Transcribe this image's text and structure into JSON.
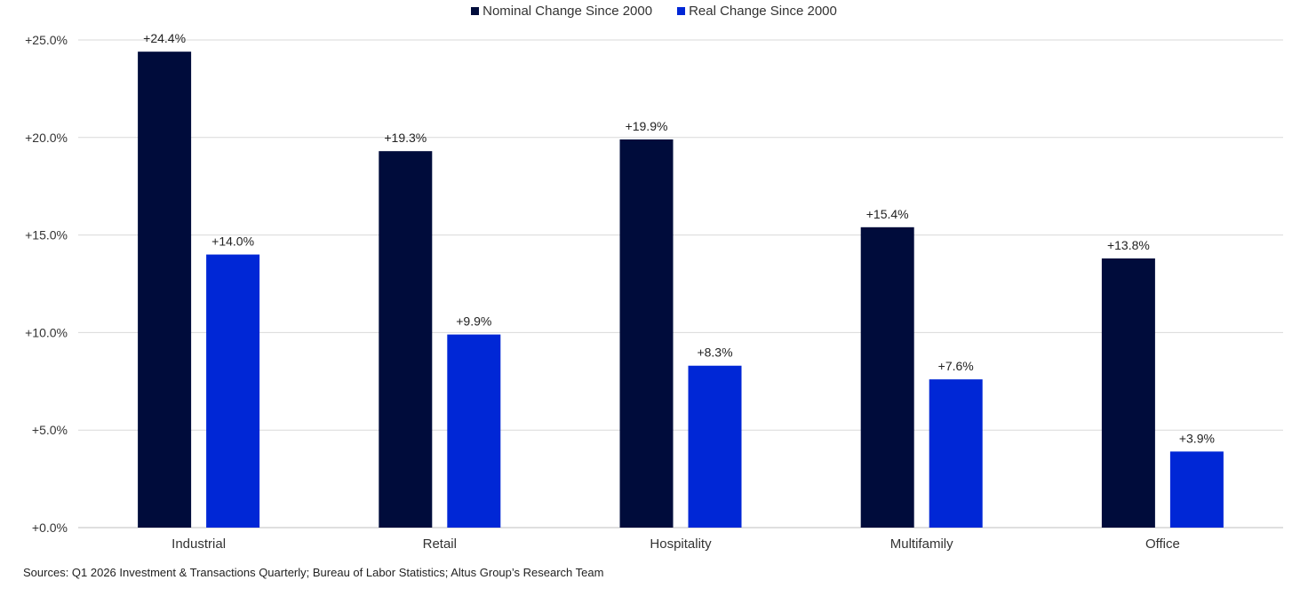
{
  "chart_data": {
    "type": "bar",
    "categories": [
      "Industrial",
      "Retail",
      "Hospitality",
      "Multifamily",
      "Office"
    ],
    "series": [
      {
        "name": "Nominal Change Since 2000",
        "color": "#000c3b",
        "values": [
          24.4,
          19.3,
          19.9,
          15.4,
          13.8
        ],
        "labels": [
          "+24.4%",
          "+19.3%",
          "+19.9%",
          "+15.4%",
          "+13.8%"
        ]
      },
      {
        "name": "Real Change Since 2000",
        "color": "#0027d6",
        "values": [
          14.0,
          9.9,
          8.3,
          7.6,
          3.9
        ],
        "labels": [
          "+14.0%",
          "+9.9%",
          "+8.3%",
          "+7.6%",
          "+3.9%"
        ]
      }
    ],
    "yticks": [
      0,
      5,
      10,
      15,
      20,
      25
    ],
    "ytick_labels": [
      "+0.0%",
      "+5.0%",
      "+10.0%",
      "+15.0%",
      "+20.0%",
      "+25.0%"
    ],
    "ylim": [
      0,
      25
    ],
    "grid": true,
    "legend": "top-center"
  },
  "source": "Sources: Q1 2026 Investment & Transactions Quarterly; Bureau of Labor Statistics; Altus Group’s Research Team"
}
